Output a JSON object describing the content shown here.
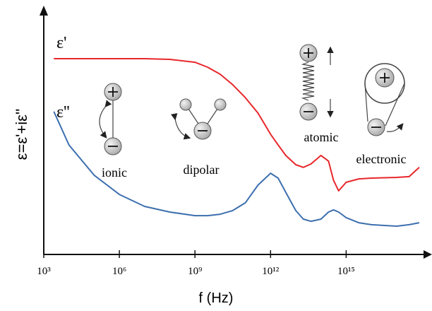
{
  "chart_data": {
    "type": "line",
    "xscale": "log",
    "xlabel": "f (Hz)",
    "ylabel": "ε=ε'+iε''",
    "xlim": [
      1000,
      2.24e+18
    ],
    "ylim": [
      0,
      10
    ],
    "xticks": [
      {
        "value": 1000,
        "label": "10³"
      },
      {
        "value": 1000000,
        "label": "10⁶"
      },
      {
        "value": 1000000000,
        "label": "10⁹"
      },
      {
        "value": 1000000000000,
        "label": "10¹²"
      },
      {
        "value": 1000000000000000,
        "label": "10¹⁵"
      }
    ],
    "x": [
      2512,
      10000,
      100000,
      1000000,
      10000000,
      100000000,
      1000000000,
      3160000000.0,
      10000000000.0,
      31600000000.0,
      100000000000.0,
      316000000000.0,
      1000000000000.0,
      2000000000000.0,
      4000000000000.0,
      10000000000000.0,
      20000000000000.0,
      40000000000000.0,
      100000000000000.0,
      200000000000000.0,
      316000000000000.0,
      500000000000000.0,
      1000000000000000.0,
      3160000000000000.0,
      1e+16,
      1e+17,
      3.16e+17,
      8e+17
    ],
    "series": [
      {
        "name": "ε'",
        "color": "#e8262a",
        "values": [
          8.03,
          8.03,
          8.03,
          8.03,
          8.03,
          8.0,
          7.88,
          7.68,
          7.39,
          6.96,
          6.43,
          5.8,
          4.93,
          4.49,
          4.06,
          3.68,
          3.57,
          3.71,
          4.06,
          3.83,
          3.04,
          2.61,
          2.96,
          3.1,
          3.13,
          3.16,
          3.19,
          3.57
        ]
      },
      {
        "name": "ε''",
        "color": "#3d6fae",
        "values": [
          5.86,
          4.49,
          3.25,
          2.46,
          1.97,
          1.74,
          1.59,
          1.59,
          1.65,
          1.8,
          2.12,
          2.84,
          3.33,
          3.13,
          2.55,
          1.8,
          1.45,
          1.36,
          1.45,
          1.74,
          1.83,
          1.74,
          1.51,
          1.3,
          1.22,
          1.16,
          1.22,
          1.3
        ]
      }
    ],
    "annotations": [
      "ionic",
      "dipolar",
      "atomic",
      "electronic"
    ]
  }
}
